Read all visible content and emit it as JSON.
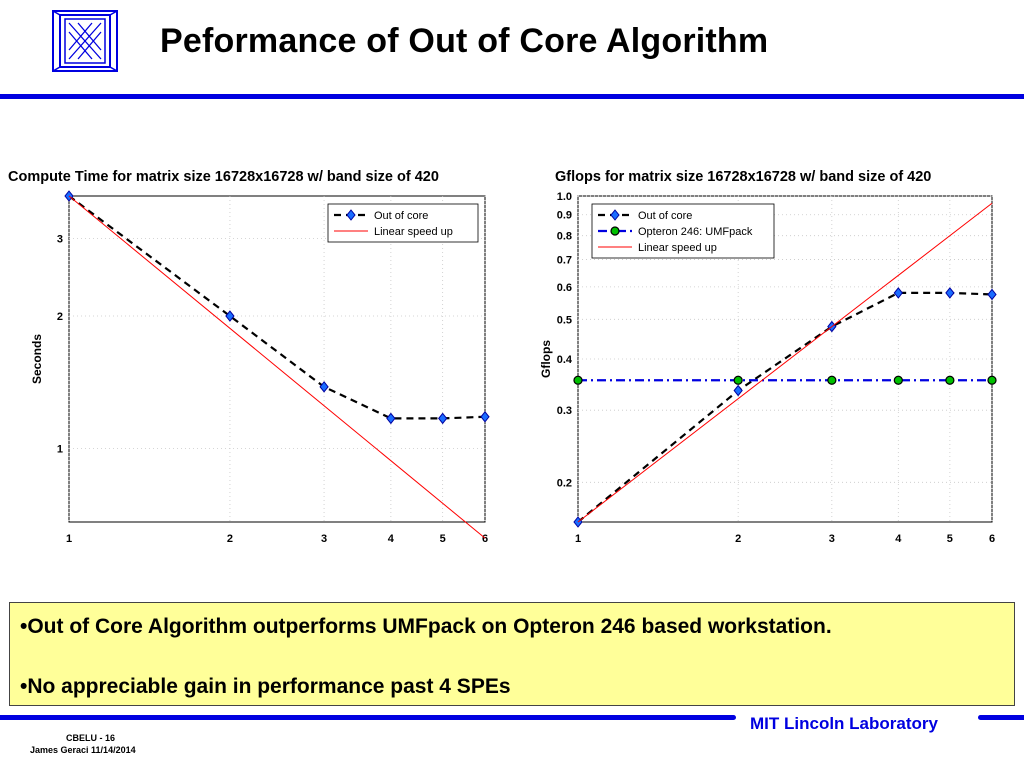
{
  "slide": {
    "title": "Peformance of Out of Core Algorithm",
    "bullets": [
      "•Out of Core Algorithm outperforms UMFpack on Opteron 246 based workstation.",
      "•No appreciable gain in performance past 4 SPEs"
    ],
    "footer": {
      "brand": "MIT Lincoln Laboratory",
      "slide_id": "CBELU - 16",
      "author_date": "James Geraci 11/14/2014"
    },
    "accent_color": "#0000e0",
    "box_color": "#ffff99"
  },
  "chart_data": [
    {
      "type": "line",
      "title": "Compute Time for matrix size 16728x16728 w/ band size of 420",
      "xlabel": "",
      "ylabel": "Seconds",
      "xscale": "log",
      "yscale": "log",
      "xlim": [
        1,
        6
      ],
      "ylim": [
        0.68,
        3.75
      ],
      "x_ticks": [
        1,
        2,
        3,
        4,
        5,
        6
      ],
      "y_ticks": [
        1,
        2,
        3
      ],
      "grid": true,
      "legend_position": "top-right",
      "series": [
        {
          "name": "Out of core",
          "x": [
            1,
            2,
            3,
            4,
            5,
            6
          ],
          "y": [
            3.75,
            2.0,
            1.38,
            1.17,
            1.17,
            1.18
          ],
          "color": "#000000",
          "marker": "diamond",
          "marker_color": "#1a6cff",
          "line": "dashed"
        },
        {
          "name": "Linear speed up",
          "x": [
            1,
            6
          ],
          "y": [
            3.75,
            0.625
          ],
          "color": "#ff0000",
          "line": "solid"
        }
      ]
    },
    {
      "type": "line",
      "title": "Gflops for matrix size 16728x16728 w/ band size of 420",
      "xlabel": "",
      "ylabel": "Gflops",
      "xscale": "log",
      "yscale": "log",
      "xlim": [
        1,
        6
      ],
      "ylim": [
        0.16,
        1.0
      ],
      "x_ticks": [
        1,
        2,
        3,
        4,
        5,
        6
      ],
      "y_ticks": [
        0.2,
        0.3,
        0.4,
        0.5,
        0.6,
        0.7,
        0.8,
        0.9,
        1.0
      ],
      "y_tick_labels": [
        "0.2",
        "0.3",
        "0.4",
        "0.5",
        "0.6",
        "0.7",
        "0.8",
        "0.9",
        "1.0"
      ],
      "grid": true,
      "legend_position": "top-right",
      "series": [
        {
          "name": "Out of core",
          "x": [
            1,
            2,
            3,
            4,
            5,
            6
          ],
          "y": [
            0.16,
            0.335,
            0.48,
            0.58,
            0.58,
            0.575
          ],
          "color": "#000000",
          "marker": "diamond",
          "marker_color": "#1a6cff",
          "line": "dashed"
        },
        {
          "name": "Opteron 246: UMFpack",
          "x": [
            1,
            2,
            3,
            4,
            5,
            6
          ],
          "y": [
            0.355,
            0.355,
            0.355,
            0.355,
            0.355,
            0.355
          ],
          "color": "#0000e0",
          "marker": "circle",
          "marker_color": "#00c000",
          "line": "dashdot"
        },
        {
          "name": "Linear speed up",
          "x": [
            1,
            6
          ],
          "y": [
            0.16,
            0.96
          ],
          "color": "#ff0000",
          "line": "solid"
        }
      ]
    }
  ]
}
